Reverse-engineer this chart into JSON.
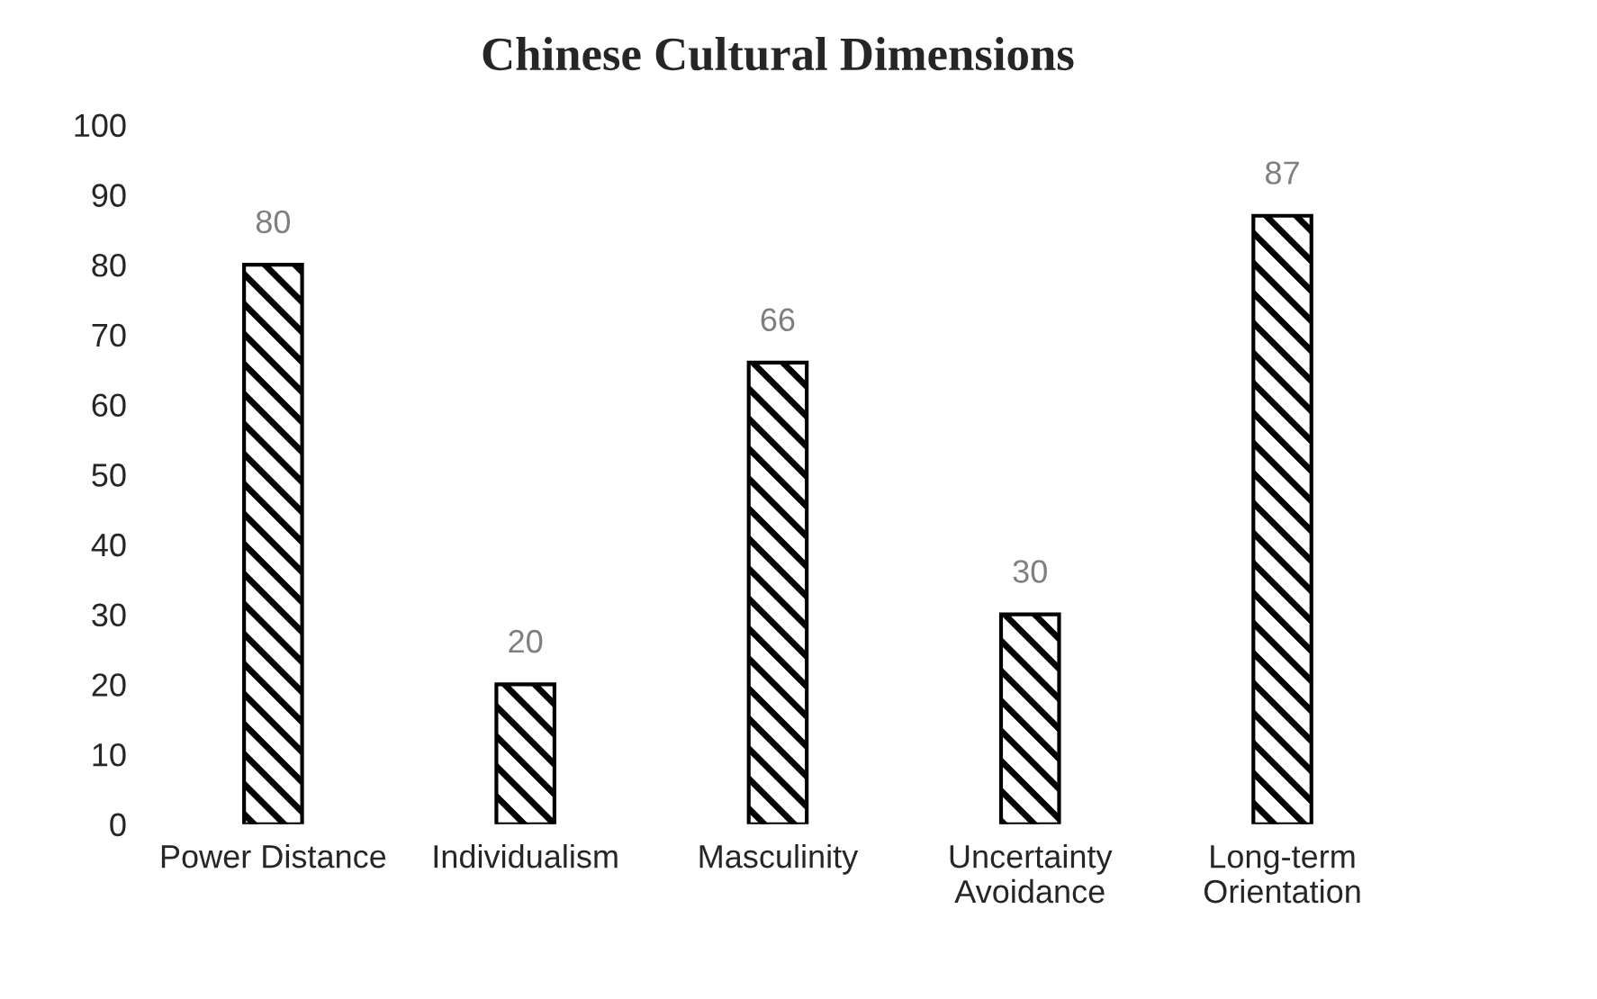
{
  "chart_data": {
    "type": "bar",
    "title": "Chinese Cultural Dimensions",
    "categories": [
      "Power Distance",
      "Individualism",
      "Masculinity",
      "Uncertainty\nAvoidance",
      "Long-term\nOrientation"
    ],
    "values": [
      80,
      20,
      66,
      30,
      87
    ],
    "color": "#000000",
    "ylim": [
      0,
      100
    ],
    "yticks": [
      0,
      10,
      20,
      30,
      40,
      50,
      60,
      70,
      80,
      90,
      100
    ],
    "grid": false,
    "legend": false,
    "data_labels": true
  }
}
